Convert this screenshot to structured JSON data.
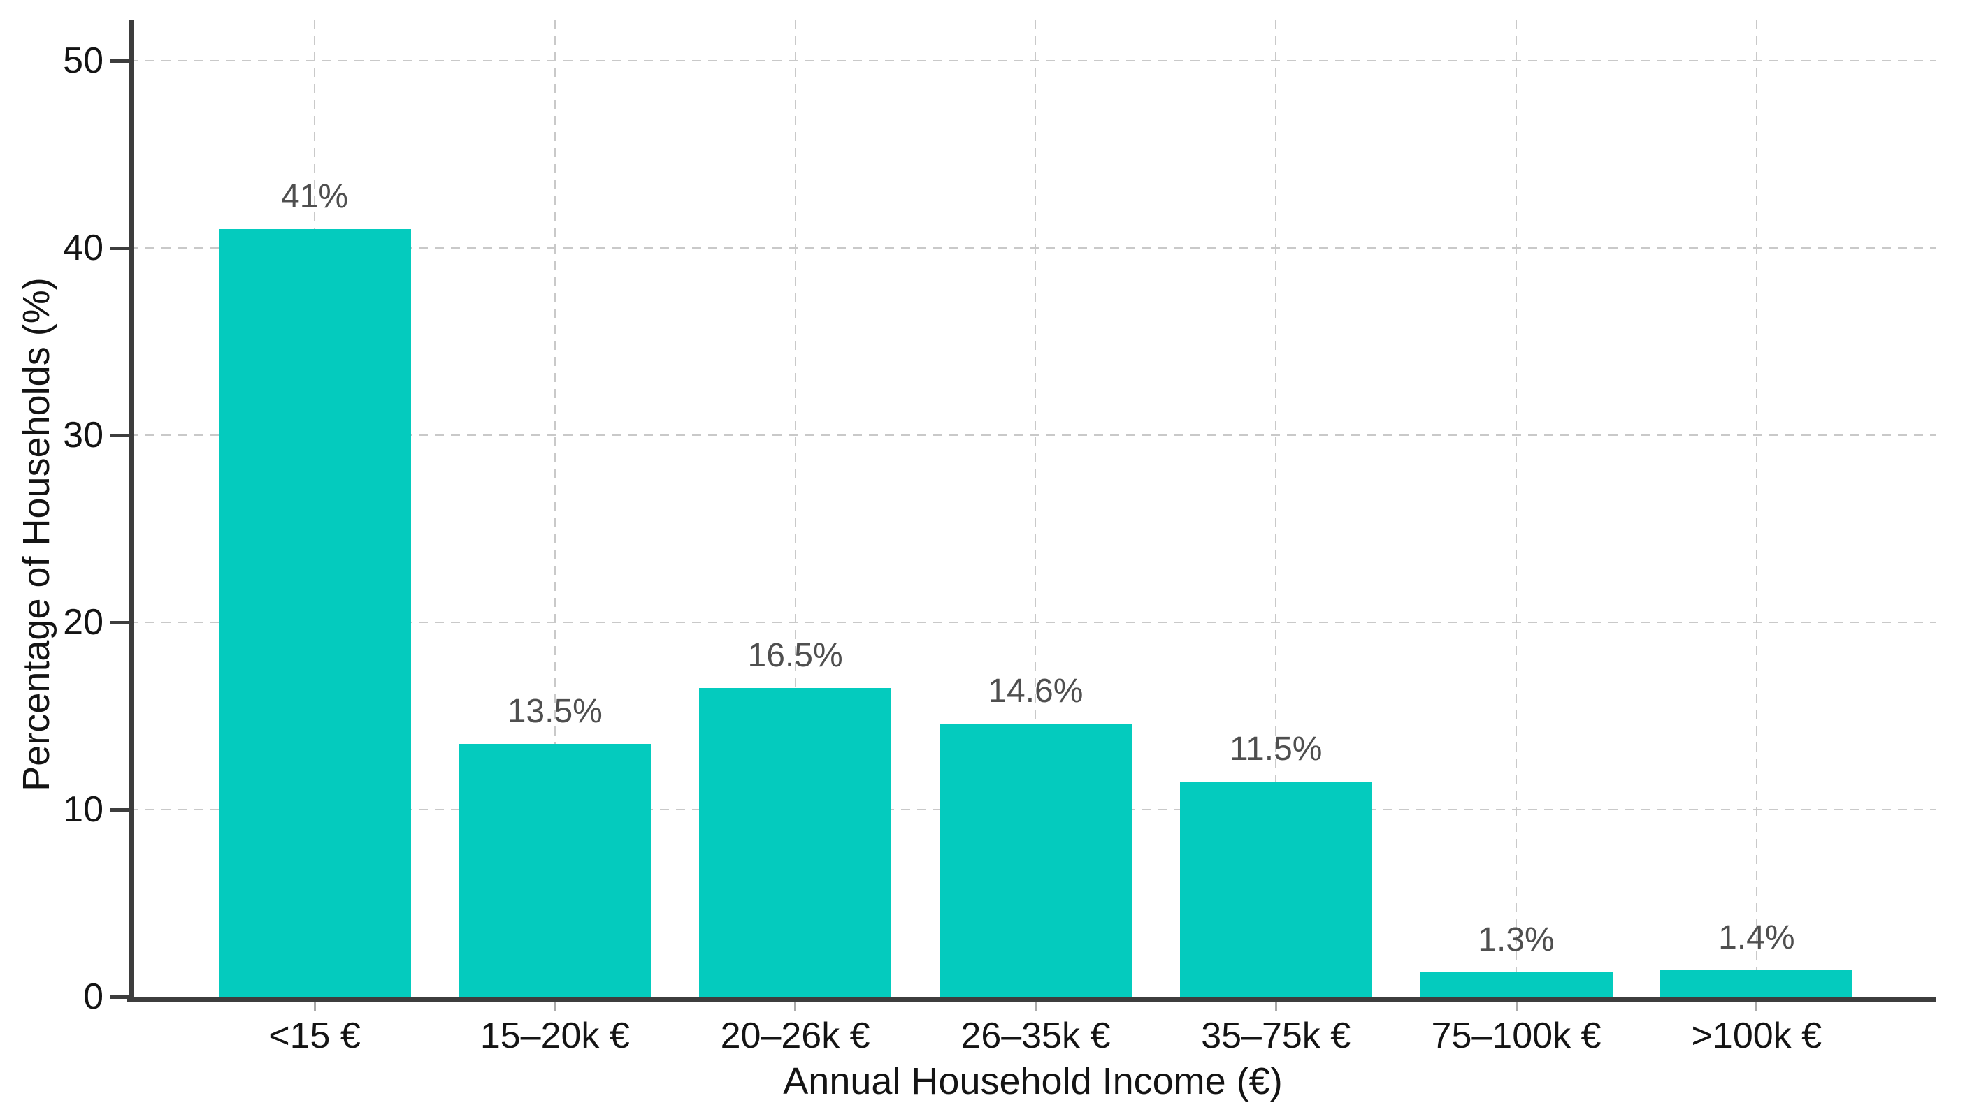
{
  "chart_data": {
    "type": "bar",
    "title": "",
    "xlabel": "Annual Household Income (€)",
    "ylabel": "Percentage of Households (%)",
    "categories": [
      "<15 €",
      "15–20k €",
      "20–26k €",
      "26–35k €",
      "35–75k €",
      "75–100k €",
      ">100k €"
    ],
    "values": [
      41,
      13.5,
      16.5,
      14.6,
      11.5,
      1.3,
      1.4
    ],
    "value_labels": [
      "41%",
      "13.5%",
      "16.5%",
      "14.6%",
      "11.5%",
      "1.3%",
      "1.4%"
    ],
    "yticks": [
      0,
      10,
      20,
      30,
      40,
      50
    ],
    "ylim": [
      0,
      52.2
    ],
    "grid": "dashed-both-axes",
    "legend": "none",
    "colors": {
      "bar": "#04CBBE",
      "grid": "#c9c9c9",
      "axis": "#3d3d3d",
      "value_label": "#4f4f4f",
      "tick_label": "#141414",
      "x_tick_mark": "#aaaaaa",
      "background": "#ffffff"
    }
  }
}
